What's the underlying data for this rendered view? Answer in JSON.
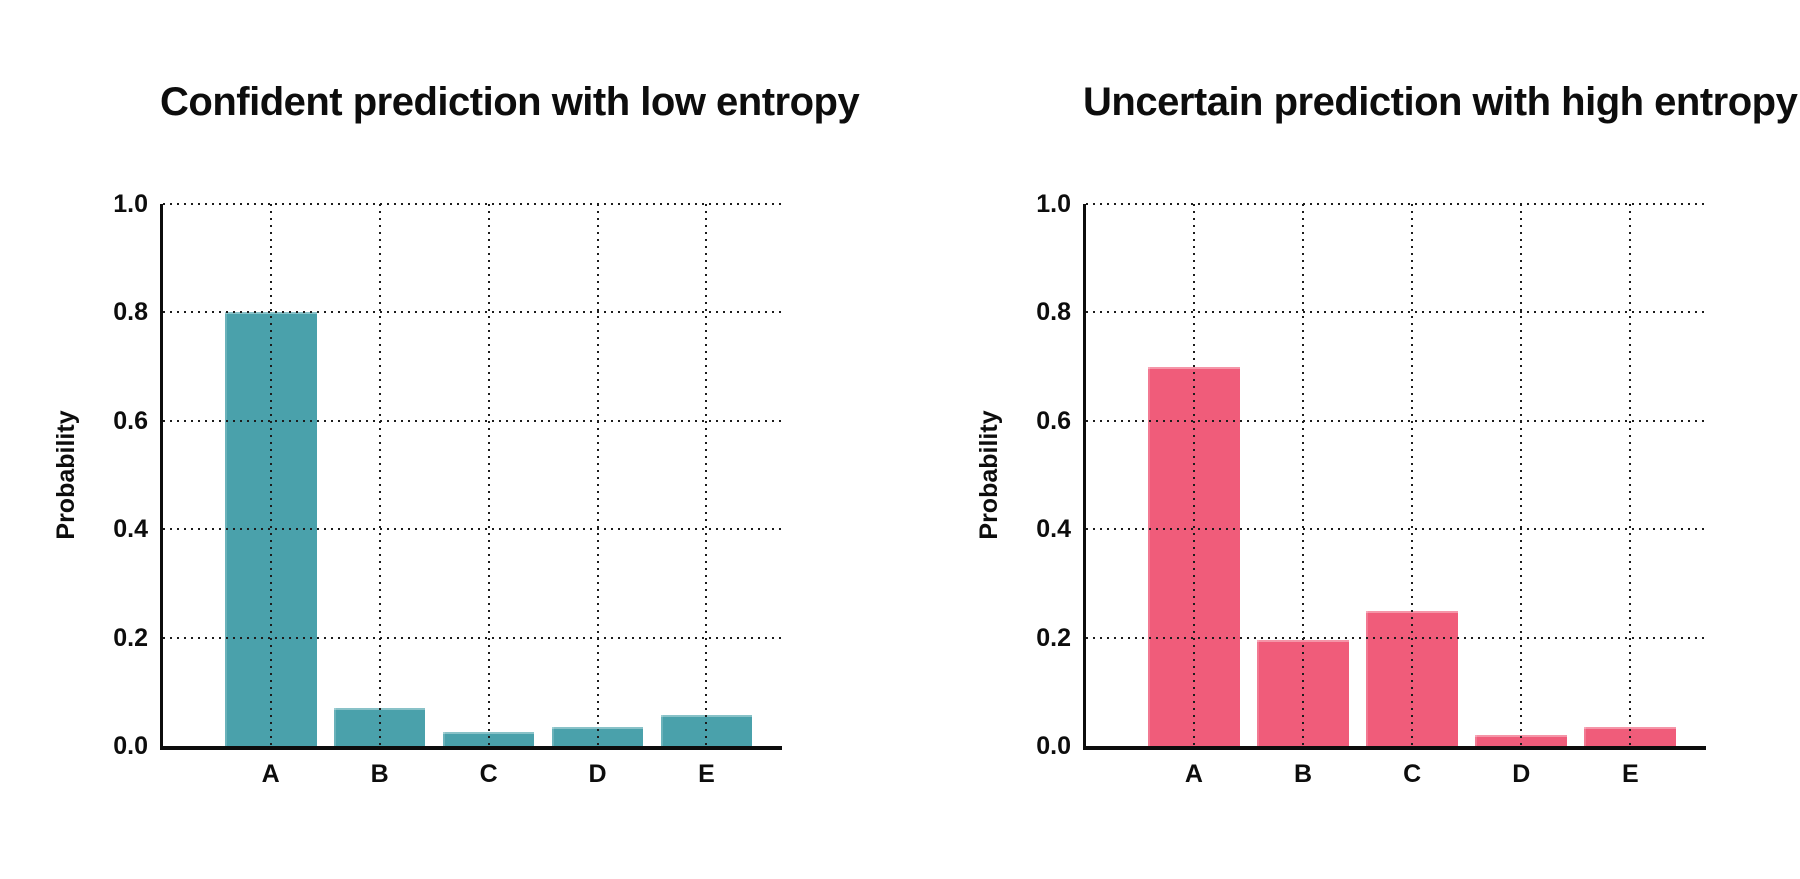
{
  "figure": {
    "background": "#ffffff",
    "text_color": "#0d0d0d",
    "grid_style": "dotted"
  },
  "chart_data": [
    {
      "type": "bar",
      "title": "Confident prediction with low entropy",
      "categories": [
        "A",
        "B",
        "C",
        "D",
        "E"
      ],
      "values": [
        0.8,
        0.07,
        0.025,
        0.035,
        0.058
      ],
      "ylabel": "Probability",
      "xlabel": "",
      "ylim": [
        0,
        1.0
      ],
      "yticks": [
        0.0,
        0.2,
        0.4,
        0.6,
        0.8,
        1.0
      ],
      "ytick_labels": [
        "0.0",
        "0.2",
        "0.4",
        "0.6",
        "0.8",
        "1.0"
      ],
      "bar_color": "#4AA1AB",
      "grid": "dotted-horizontal-and-vertical",
      "legend": "none"
    },
    {
      "type": "bar",
      "title": "Uncertain prediction with high entropy",
      "categories": [
        "A",
        "B",
        "C",
        "D",
        "E"
      ],
      "values": [
        0.7,
        0.195,
        0.25,
        0.02,
        0.035
      ],
      "ylabel": "Probability",
      "xlabel": "",
      "ylim": [
        0,
        1.0
      ],
      "yticks": [
        0.0,
        0.2,
        0.4,
        0.6,
        0.8,
        1.0
      ],
      "ytick_labels": [
        "0.0",
        "0.2",
        "0.4",
        "0.6",
        "0.8",
        "1.0"
      ],
      "bar_color": "#F05C7A",
      "grid": "dotted-horizontal-and-vertical",
      "legend": "none"
    }
  ]
}
